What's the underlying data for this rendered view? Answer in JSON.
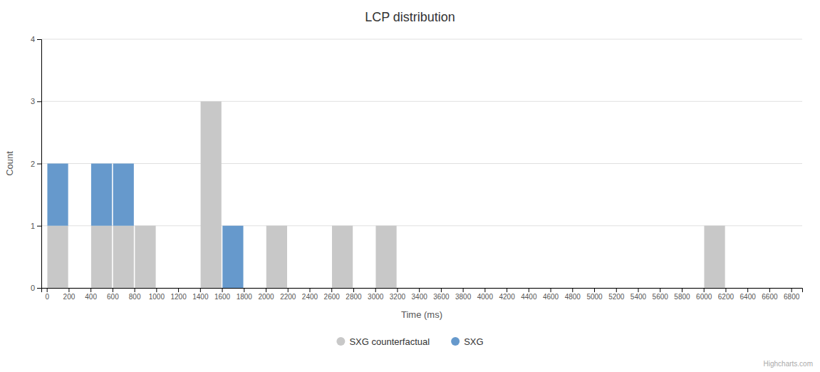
{
  "chart_data": {
    "type": "bar",
    "title": "LCP distribution",
    "x_label": "Time (ms)",
    "y_label": "Count",
    "x": [
      0,
      400,
      600,
      800,
      1400,
      1600,
      2000,
      2600,
      3000,
      6000
    ],
    "bin_width": 200,
    "series": [
      {
        "name": "SXG counterfactual",
        "color": "#c8c8c8",
        "values": [
          1,
          1,
          1,
          1,
          3,
          null,
          1,
          1,
          1,
          1
        ]
      },
      {
        "name": "SXG",
        "color": "#6699cc",
        "values": [
          1,
          1,
          1,
          null,
          null,
          1,
          null,
          null,
          null,
          null
        ]
      }
    ],
    "stacked": true,
    "xlim": [
      -50,
      6900
    ],
    "xticks": [
      0,
      200,
      400,
      600,
      800,
      1000,
      1200,
      1400,
      1600,
      1800,
      2000,
      2200,
      2400,
      2600,
      2800,
      3000,
      3200,
      3400,
      3600,
      3800,
      4000,
      4200,
      4400,
      4600,
      4800,
      5000,
      5200,
      5400,
      5600,
      5800,
      6000,
      6200,
      6400,
      6600,
      6800
    ],
    "ylim": [
      0,
      4
    ],
    "yticks": [
      0,
      1,
      2,
      3,
      4
    ],
    "grid": true,
    "legend": "bottom",
    "annotations": [
      "Highcharts.com"
    ]
  }
}
